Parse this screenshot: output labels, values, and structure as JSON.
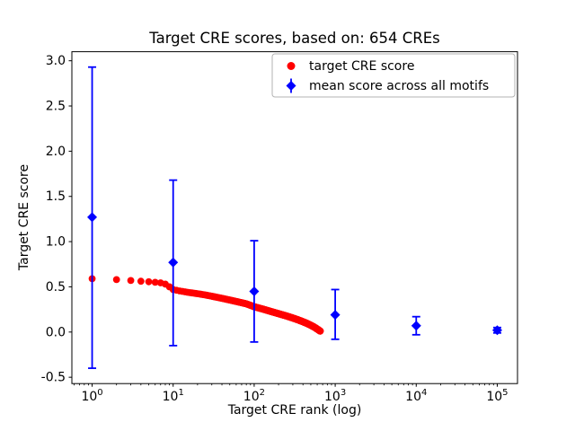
{
  "chart_data": {
    "type": "scatter",
    "title": "Target CRE scores, based on: 654 CREs",
    "xlabel": "Target CRE rank (log)",
    "ylabel": "Target CRE score",
    "x_scale": "log",
    "xlim_log": [
      -0.25,
      5.25
    ],
    "ylim": [
      -0.57,
      3.1
    ],
    "x_ticks_exponents": [
      0,
      1,
      2,
      3,
      4,
      5
    ],
    "y_ticks": [
      -0.5,
      0.0,
      0.5,
      1.0,
      1.5,
      2.0,
      2.5,
      3.0
    ],
    "grid": false,
    "colors": {
      "target": "#ff0000",
      "mean": "#0000ff",
      "frame": "#000000",
      "legend_border": "#b3b3b3"
    },
    "series": [
      {
        "name": "target CRE score",
        "marker": "circle",
        "color": "#ff0000",
        "count": 654,
        "anchor_points": [
          [
            1,
            0.59
          ],
          [
            2,
            0.58
          ],
          [
            3,
            0.57
          ],
          [
            4,
            0.562
          ],
          [
            5,
            0.556
          ],
          [
            6,
            0.55
          ],
          [
            7,
            0.544
          ],
          [
            8,
            0.53
          ],
          [
            9,
            0.5
          ],
          [
            10,
            0.47
          ],
          [
            12,
            0.455
          ],
          [
            15,
            0.44
          ],
          [
            20,
            0.424
          ],
          [
            25,
            0.41
          ],
          [
            30,
            0.396
          ],
          [
            40,
            0.373
          ],
          [
            50,
            0.354
          ],
          [
            60,
            0.338
          ],
          [
            80,
            0.312
          ],
          [
            100,
            0.28
          ],
          [
            130,
            0.252
          ],
          [
            160,
            0.228
          ],
          [
            200,
            0.203
          ],
          [
            250,
            0.178
          ],
          [
            300,
            0.155
          ],
          [
            350,
            0.134
          ],
          [
            400,
            0.114
          ],
          [
            450,
            0.095
          ],
          [
            500,
            0.075
          ],
          [
            550,
            0.055
          ],
          [
            600,
            0.033
          ],
          [
            654,
            0.01
          ]
        ]
      },
      {
        "name": "mean score across all motifs",
        "marker": "diamond",
        "color": "#0000ff",
        "points": [
          {
            "x": 1,
            "mean": 1.27,
            "lo": -0.4,
            "hi": 2.93
          },
          {
            "x": 10,
            "mean": 0.77,
            "lo": -0.15,
            "hi": 1.68
          },
          {
            "x": 100,
            "mean": 0.45,
            "lo": -0.11,
            "hi": 1.01
          },
          {
            "x": 1000,
            "mean": 0.19,
            "lo": -0.08,
            "hi": 0.47
          },
          {
            "x": 10000,
            "mean": 0.07,
            "lo": -0.03,
            "hi": 0.17
          },
          {
            "x": 100000,
            "mean": 0.02,
            "lo": -0.01,
            "hi": 0.05
          }
        ]
      }
    ],
    "legend": {
      "position": "upper right",
      "entries": [
        "target CRE score",
        "mean score across all motifs"
      ]
    }
  }
}
